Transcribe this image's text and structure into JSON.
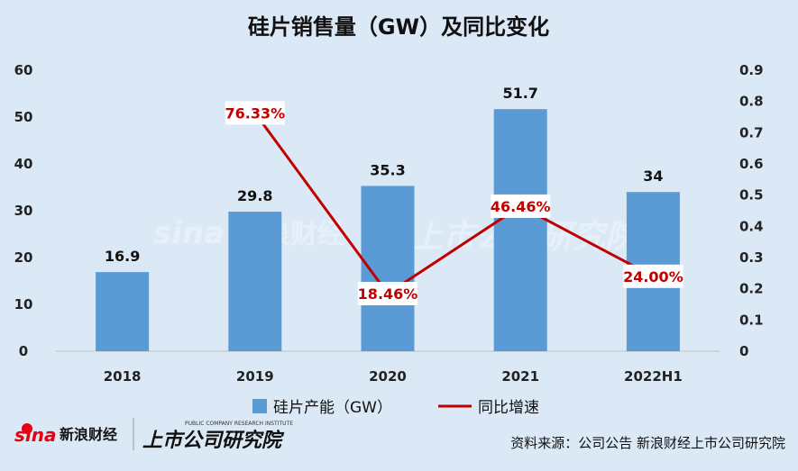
{
  "chart_data": {
    "type": "bar",
    "title": "硅片销售量（GW）及同比变化",
    "categories": [
      "2018",
      "2019",
      "2020",
      "2021",
      "2022H1"
    ],
    "series": [
      {
        "name": "硅片产能（GW）",
        "type": "bar",
        "axis": "left",
        "values": [
          16.9,
          29.8,
          35.3,
          51.7,
          34
        ],
        "labels": [
          "16.9",
          "29.8",
          "35.3",
          "51.7",
          "34"
        ],
        "color": "#5b9bd5"
      },
      {
        "name": "同比增速",
        "type": "line",
        "axis": "right",
        "values": [
          null,
          0.7633,
          0.1846,
          0.4646,
          0.24
        ],
        "labels": [
          "",
          "76.33%",
          "18.46%",
          "46.46%",
          "24.00%"
        ],
        "color": "#c00000"
      }
    ],
    "ylim_left": [
      0,
      60
    ],
    "yticks_left": [
      "0",
      "10",
      "20",
      "30",
      "40",
      "50",
      "60"
    ],
    "ylim_right": [
      0,
      0.9
    ],
    "yticks_right": [
      "0",
      "0.1",
      "0.2",
      "0.3",
      "0.4",
      "0.5",
      "0.6",
      "0.7",
      "0.8",
      "0.9"
    ],
    "grid": false,
    "legend_position": "bottom"
  },
  "source_text": "资料来源：公司公告 新浪财经上市公司研究院",
  "logo_text": {
    "sina": "sina",
    "sina_cn": "新浪财经",
    "institute": "上市公司研究院",
    "institute_en": "PUBLIC COMPANY RESEARCH INSTITUTE"
  },
  "colors": {
    "background": "#dbe9f6",
    "bar": "#5b9bd5",
    "line": "#c00000"
  }
}
